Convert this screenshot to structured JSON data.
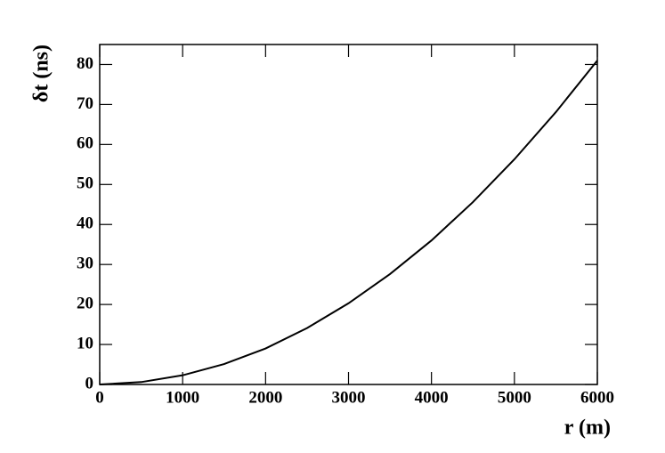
{
  "chart_data": {
    "type": "line",
    "xlabel": "r (m)",
    "ylabel": "δt (ns)",
    "x": [
      0,
      500,
      1000,
      1500,
      2000,
      2500,
      3000,
      3500,
      4000,
      4500,
      5000,
      5500,
      6000
    ],
    "values": [
      0,
      0.6,
      2.3,
      5.1,
      9,
      14.1,
      20.3,
      27.6,
      36,
      45.6,
      56.3,
      68.1,
      81
    ],
    "color": "#000000",
    "xlim": [
      0,
      6000
    ],
    "xticks": [
      0,
      1000,
      2000,
      3000,
      4000,
      5000,
      6000
    ],
    "ylim": [
      0,
      85
    ],
    "yticks": [
      0,
      10,
      20,
      30,
      40,
      50,
      60,
      70,
      80
    ],
    "grid": false
  }
}
